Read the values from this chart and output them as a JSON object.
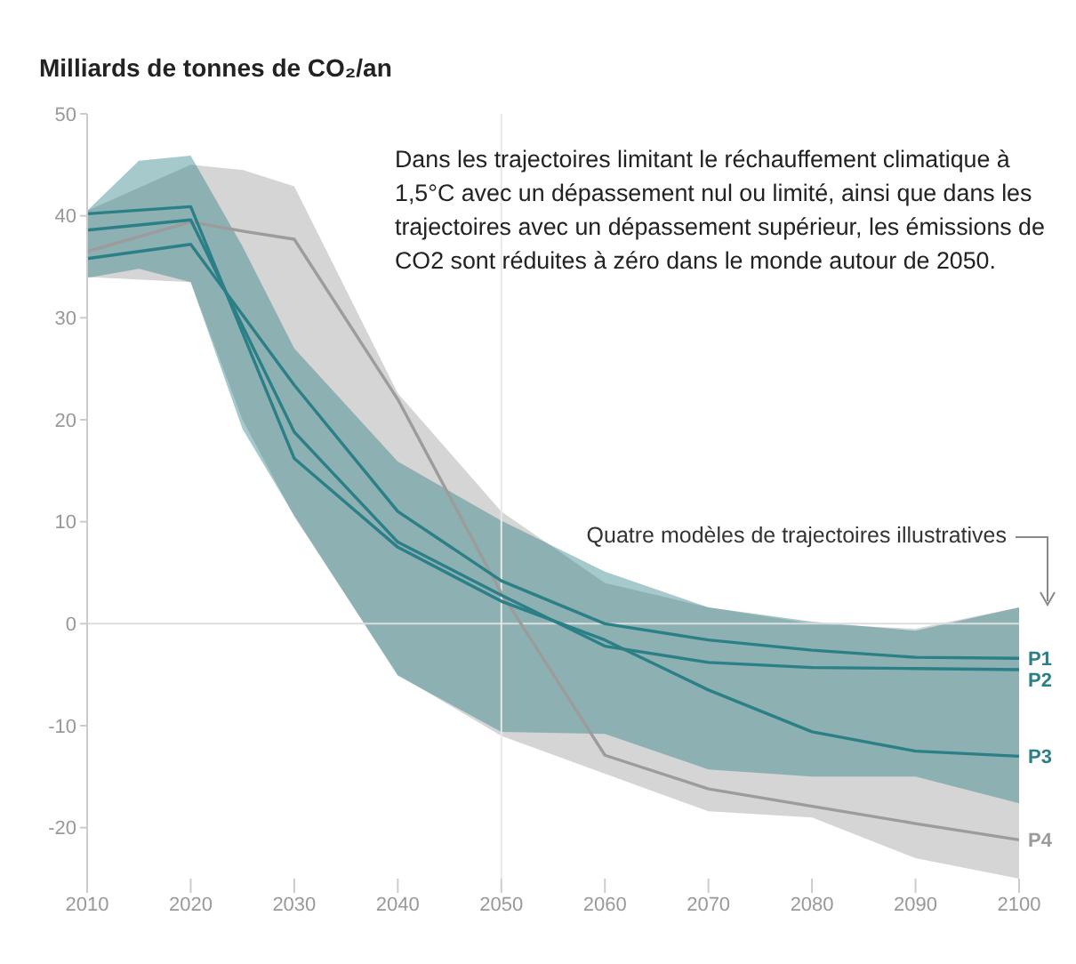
{
  "chart_data": {
    "type": "line",
    "ylabel": "Milliards de tonnes de CO₂/an",
    "annotations": [
      "Dans les trajectoires limitant le réchauffement climatique à 1,5°C avec un dépassement nul ou limité, ainsi que dans les trajectoires avec un dépassement supérieur, les émissions de CO2 sont réduites à zéro dans le monde autour de 2050.",
      "Quatre modèles de trajectoires illustratives"
    ],
    "xlim": [
      2010,
      2100
    ],
    "xticks": [
      2010,
      2020,
      2030,
      2040,
      2050,
      2060,
      2070,
      2080,
      2090,
      2100
    ],
    "ylim": [
      -25,
      50
    ],
    "yticks": [
      -20,
      -10,
      0,
      10,
      20,
      30,
      40,
      50
    ],
    "marker": "none",
    "line_style": "solid",
    "ref_lines": [
      {
        "axis": "y",
        "value": 0,
        "color": "#dddddd"
      },
      {
        "axis": "x",
        "value": 2050,
        "color": "#e8e8e8"
      }
    ],
    "series": [
      {
        "name": "P4",
        "color": "#9c9c9c",
        "x": [
          2010,
          2020,
          2025,
          2030,
          2040,
          2050,
          2060,
          2070,
          2080,
          2090,
          2100
        ],
        "values": [
          36.5,
          39.4,
          38.5,
          37.7,
          22,
          3,
          -12.9,
          -16.2,
          -17.9,
          -19.6,
          -21.2
        ],
        "lower": [
          34,
          33.5,
          20,
          10.5,
          -5,
          -11,
          -14.7,
          -18.4,
          -19,
          -23,
          -25
        ],
        "upper": [
          40.5,
          45,
          44.5,
          42.9,
          22.6,
          11,
          4,
          1.6,
          0,
          -0.5,
          1.6
        ]
      },
      {
        "name": "P1",
        "color": "#2b7f86",
        "x": [
          2010,
          2020,
          2030,
          2040,
          2050,
          2060,
          2070,
          2080,
          2090,
          2100
        ],
        "values": [
          35.8,
          37.2,
          23.4,
          11,
          4.2,
          0,
          -1.6,
          -2.6,
          -3.3,
          -3.4
        ]
      },
      {
        "name": "P2",
        "color": "#2b7f86",
        "x": [
          2010,
          2015,
          2020,
          2025,
          2030,
          2040,
          2050,
          2060,
          2070,
          2080,
          2090,
          2100
        ],
        "values": [
          38.6,
          39.1,
          39.6,
          29.2,
          18.8,
          8,
          2.8,
          -2.2,
          -3.8,
          -4.3,
          -4.4,
          -4.5
        ],
        "lower": [
          33.9,
          34.8,
          33.5,
          19.1,
          10.6,
          -5.1,
          -10.6,
          -10.8,
          -14.3,
          -15,
          -15,
          -17.6
        ],
        "upper": [
          40.5,
          45.4,
          45.9,
          37,
          27,
          15.9,
          10.1,
          5.1,
          1.6,
          0.2,
          -0.7,
          1.6
        ]
      },
      {
        "name": "P3",
        "color": "#2b7f86",
        "x": [
          2010,
          2020,
          2030,
          2040,
          2050,
          2060,
          2070,
          2080,
          2090,
          2100
        ],
        "values": [
          40.2,
          40.9,
          16.2,
          7.5,
          2.2,
          -1.6,
          -6.5,
          -10.6,
          -12.5,
          -13
        ]
      }
    ]
  }
}
